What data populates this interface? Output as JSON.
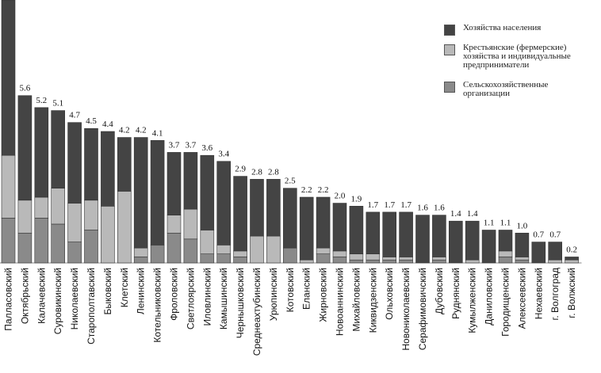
{
  "chart_data": {
    "type": "bar",
    "stacked": true,
    "title": "",
    "xlabel": "",
    "ylabel": "",
    "categories": [
      "Палласовский",
      "Октябрьский",
      "Калачевский",
      "Суровикинский",
      "Николаевский",
      "Старополтавский",
      "Быковский",
      "Клетский",
      "Ленинский",
      "Котельниковский",
      "Фроловский",
      "Светлоярский",
      "Иловлинский",
      "Камышинский",
      "Чернышковский",
      "Среднеахтубинский",
      "Урюпинский",
      "Котовский",
      "Еланский",
      "Жирновский",
      "Новоаннинский",
      "Михайловский",
      "Киквидзенский",
      "Ольховский",
      "Новониколаевский",
      "Серафимовичский",
      "Дубовский",
      "Руднянский",
      "Кумылженский",
      "Даниловский",
      "Городищенский",
      "Алексеевский",
      "Нехаевский",
      "г. Волгоград",
      "г. Волжский"
    ],
    "totals": [
      "",
      "5.6",
      "5.2",
      "5.1",
      "4.7",
      "4.5",
      "4.4",
      "4.2",
      "4.2",
      "4.1",
      "3.7",
      "3.7",
      "3.6",
      "3.4",
      "2.9",
      "2.8",
      "2.8",
      "2.5",
      "2.2",
      "2.2",
      "2.0",
      "1.9",
      "1.7",
      "1.7",
      "1.7",
      "1.6",
      "1.6",
      "1.4",
      "1.4",
      "1.1",
      "1.1",
      "1.0",
      "0.7",
      "0.7",
      "0.2"
    ],
    "series": [
      {
        "name": "Сельскохозяйственные организации",
        "color": "#8a8a8a",
        "values": [
          1.5,
          1.0,
          1.5,
          1.3,
          0.7,
          1.1,
          0.0,
          0.0,
          0.2,
          0.6,
          1.0,
          0.8,
          0.3,
          0.3,
          0.2,
          0.0,
          0.0,
          0.5,
          0.0,
          0.3,
          0.2,
          0.1,
          0.1,
          0.1,
          0.1,
          0.0,
          0.1,
          0.0,
          0.0,
          0.0,
          0.2,
          0.1,
          0.0,
          0.0,
          0.0
        ]
      },
      {
        "name": "Крестьянские (фермерские) хозяйства и индивидуальные предприниматели",
        "color": "#b9b9b9",
        "values": [
          2.1,
          1.1,
          0.7,
          1.2,
          1.3,
          1.0,
          1.9,
          2.4,
          0.3,
          0.0,
          0.6,
          1.0,
          0.8,
          0.3,
          0.2,
          0.9,
          0.9,
          0.0,
          0.1,
          0.2,
          0.2,
          0.2,
          0.2,
          0.1,
          0.1,
          0.0,
          0.1,
          0.0,
          0.1,
          0.0,
          0.2,
          0.1,
          0.0,
          0.1,
          0.1
        ]
      },
      {
        "name": "Хозяйства населения",
        "color": "#444444",
        "values": [
          5.2,
          3.5,
          3.0,
          2.6,
          2.7,
          2.4,
          2.5,
          1.8,
          3.7,
          3.5,
          2.1,
          1.9,
          2.5,
          2.8,
          2.5,
          1.9,
          1.9,
          2.0,
          2.1,
          1.7,
          1.6,
          1.6,
          1.4,
          1.5,
          1.5,
          1.6,
          1.4,
          1.4,
          1.3,
          1.1,
          0.7,
          0.8,
          0.7,
          0.6,
          0.1
        ]
      }
    ],
    "ylim": [
      0,
      8.8
    ],
    "grid": false,
    "legend_position": "top-right"
  },
  "legend": [
    {
      "label_lines": [
        "Хозяйства населения"
      ],
      "color": "#444444"
    },
    {
      "label_lines": [
        "Крестьянские (фермерские)",
        "хозяйства и индивидуальные",
        "предприниматели"
      ],
      "color": "#b9b9b9"
    },
    {
      "label_lines": [
        "Сельскохозяйственные",
        "организации"
      ],
      "color": "#8a8a8a"
    }
  ]
}
